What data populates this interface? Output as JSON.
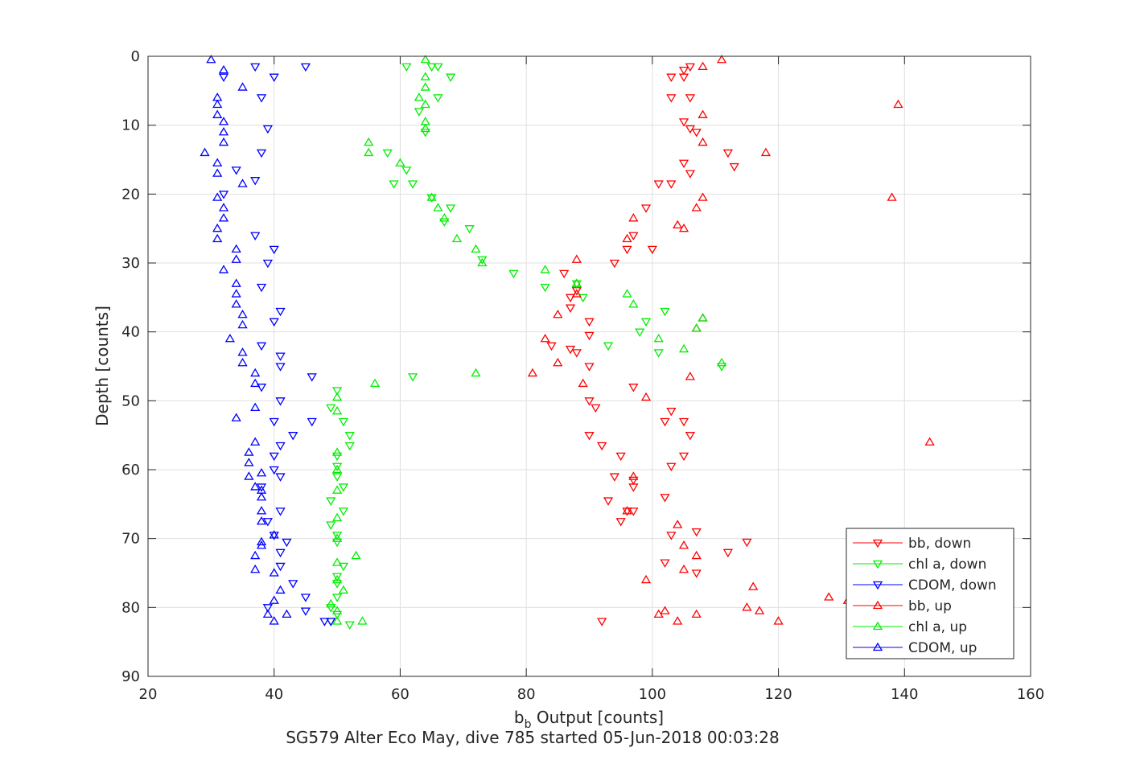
{
  "chart_data": {
    "type": "scatter",
    "xlabel": "b_b Output [counts]",
    "xlabel_main": "b",
    "xlabel_sub": "b",
    "xlabel_rest": " Output [counts]",
    "ylabel": "Depth [counts]",
    "caption": "SG579 Alter Eco May, dive 785 started 05-Jun-2018 00:03:28",
    "xlim": [
      20,
      160
    ],
    "ylim": [
      0,
      90
    ],
    "y_reversed": true,
    "xticks": [
      "20",
      "40",
      "60",
      "80",
      "100",
      "120",
      "140",
      "160"
    ],
    "yticks": [
      "0",
      "10",
      "20",
      "30",
      "40",
      "50",
      "60",
      "70",
      "80",
      "90"
    ],
    "grid": true,
    "legend_position": "lower-right",
    "series": [
      {
        "name": "bb, down",
        "color": "#ff0000",
        "marker": "triangle-down",
        "points": [
          [
            106,
            1.5
          ],
          [
            105,
            2
          ],
          [
            103,
            3
          ],
          [
            105,
            3
          ],
          [
            103,
            6
          ],
          [
            106,
            6
          ],
          [
            105,
            9.5
          ],
          [
            106,
            10.5
          ],
          [
            107,
            11
          ],
          [
            112,
            14
          ],
          [
            113,
            16
          ],
          [
            105,
            15.5
          ],
          [
            106,
            17
          ],
          [
            101,
            18.5
          ],
          [
            103,
            18.5
          ],
          [
            99,
            22
          ],
          [
            97,
            26
          ],
          [
            96,
            28
          ],
          [
            100,
            28
          ],
          [
            94,
            30
          ],
          [
            86,
            31.5
          ],
          [
            87,
            35
          ],
          [
            88,
            34
          ],
          [
            87,
            36.5
          ],
          [
            90,
            38.5
          ],
          [
            90,
            40.5
          ],
          [
            84,
            42
          ],
          [
            87,
            42.5
          ],
          [
            88,
            43
          ],
          [
            90,
            45
          ],
          [
            97,
            48
          ],
          [
            90,
            50
          ],
          [
            91,
            51
          ],
          [
            103,
            51.5
          ],
          [
            102,
            53
          ],
          [
            105,
            53
          ],
          [
            106,
            55
          ],
          [
            90,
            55
          ],
          [
            92,
            56.5
          ],
          [
            95,
            58
          ],
          [
            103,
            59.5
          ],
          [
            105,
            58
          ],
          [
            94,
            61
          ],
          [
            97,
            61.5
          ],
          [
            97,
            62.5
          ],
          [
            102,
            64
          ],
          [
            93,
            64.5
          ],
          [
            97,
            66
          ],
          [
            96,
            66
          ],
          [
            95,
            67.5
          ],
          [
            103,
            69.5
          ],
          [
            107,
            69
          ],
          [
            115,
            70.5
          ],
          [
            112,
            72
          ],
          [
            102,
            73.5
          ],
          [
            107,
            75
          ],
          [
            92,
            82
          ]
        ]
      },
      {
        "name": "chl a, down",
        "color": "#00ee00",
        "marker": "triangle-down",
        "points": [
          [
            61,
            1.5
          ],
          [
            66,
            1.5
          ],
          [
            65,
            1.5
          ],
          [
            68,
            3
          ],
          [
            66,
            6
          ],
          [
            63,
            8
          ],
          [
            64,
            11
          ],
          [
            58,
            14
          ],
          [
            61,
            16.5
          ],
          [
            62,
            18.5
          ],
          [
            59,
            18.5
          ],
          [
            65,
            20.5
          ],
          [
            68,
            22
          ],
          [
            67,
            24
          ],
          [
            71,
            25
          ],
          [
            73,
            29.5
          ],
          [
            78,
            31.5
          ],
          [
            83,
            33.5
          ],
          [
            88,
            33
          ],
          [
            89,
            35
          ],
          [
            102,
            37
          ],
          [
            99,
            38.5
          ],
          [
            98,
            40
          ],
          [
            101,
            43
          ],
          [
            93,
            42
          ],
          [
            111,
            45
          ],
          [
            62,
            46.5
          ],
          [
            50,
            48.5
          ],
          [
            49,
            51
          ],
          [
            51,
            53
          ],
          [
            52,
            55
          ],
          [
            52,
            56.5
          ],
          [
            50,
            58
          ],
          [
            50,
            59.5
          ],
          [
            50,
            61
          ],
          [
            51,
            62.5
          ],
          [
            49,
            64.5
          ],
          [
            51,
            66
          ],
          [
            49,
            68
          ],
          [
            50,
            69.5
          ],
          [
            50,
            70.5
          ],
          [
            51,
            74
          ],
          [
            50,
            75.5
          ],
          [
            50,
            76.5
          ],
          [
            50,
            78.5
          ],
          [
            49,
            80
          ],
          [
            50,
            81
          ],
          [
            49,
            82
          ],
          [
            52,
            82.5
          ]
        ]
      },
      {
        "name": "CDOM, down",
        "color": "#0000ff",
        "marker": "triangle-down",
        "points": [
          [
            37,
            1.5
          ],
          [
            45,
            1.5
          ],
          [
            40,
            3
          ],
          [
            32,
            3
          ],
          [
            38,
            6
          ],
          [
            39,
            10.5
          ],
          [
            38,
            14
          ],
          [
            34,
            16.5
          ],
          [
            37,
            18
          ],
          [
            32,
            20
          ],
          [
            37,
            26
          ],
          [
            40,
            28
          ],
          [
            39,
            30
          ],
          [
            38,
            33.5
          ],
          [
            41,
            37
          ],
          [
            40,
            38.5
          ],
          [
            38,
            42
          ],
          [
            41,
            43.5
          ],
          [
            41,
            45
          ],
          [
            46,
            46.5
          ],
          [
            38,
            48
          ],
          [
            41,
            50
          ],
          [
            40,
            53
          ],
          [
            46,
            53
          ],
          [
            43,
            55
          ],
          [
            41,
            56.5
          ],
          [
            40,
            58
          ],
          [
            40,
            60
          ],
          [
            41,
            61
          ],
          [
            38,
            62.5
          ],
          [
            41,
            66
          ],
          [
            39,
            67.5
          ],
          [
            40,
            69.5
          ],
          [
            42,
            70.5
          ],
          [
            41,
            72
          ],
          [
            41,
            74
          ],
          [
            43,
            76.5
          ],
          [
            45,
            78.5
          ],
          [
            39,
            80
          ],
          [
            45,
            80.5
          ],
          [
            48,
            82
          ],
          [
            49,
            82
          ]
        ]
      },
      {
        "name": "bb, up",
        "color": "#ff0000",
        "marker": "triangle-up",
        "points": [
          [
            111,
            0.5
          ],
          [
            108,
            1.5
          ],
          [
            139,
            7
          ],
          [
            108,
            8.5
          ],
          [
            108,
            12.5
          ],
          [
            118,
            14
          ],
          [
            138,
            20.5
          ],
          [
            108,
            20.5
          ],
          [
            107,
            22
          ],
          [
            104,
            24.5
          ],
          [
            105,
            25
          ],
          [
            97,
            23.5
          ],
          [
            96,
            26.5
          ],
          [
            88,
            29.5
          ],
          [
            88,
            33
          ],
          [
            88,
            34.5
          ],
          [
            85,
            37.5
          ],
          [
            107,
            39.5
          ],
          [
            108,
            38
          ],
          [
            83,
            41
          ],
          [
            85,
            44.5
          ],
          [
            81,
            46
          ],
          [
            106,
            46.5
          ],
          [
            89,
            47.5
          ],
          [
            99,
            49.5
          ],
          [
            144,
            56
          ],
          [
            97,
            61
          ],
          [
            96,
            66
          ],
          [
            104,
            68
          ],
          [
            105,
            71
          ],
          [
            107,
            72.5
          ],
          [
            105,
            74.5
          ],
          [
            99,
            76
          ],
          [
            116,
            77
          ],
          [
            128,
            78.5
          ],
          [
            131,
            79
          ],
          [
            115,
            80
          ],
          [
            117,
            80.5
          ],
          [
            102,
            80.5
          ],
          [
            101,
            81
          ],
          [
            120,
            82
          ],
          [
            104,
            82
          ],
          [
            107,
            81
          ]
        ]
      },
      {
        "name": "chl a, up",
        "color": "#00ee00",
        "marker": "triangle-up",
        "points": [
          [
            64,
            0.5
          ],
          [
            64,
            3
          ],
          [
            64,
            4.5
          ],
          [
            63,
            6
          ],
          [
            64,
            7
          ],
          [
            64,
            9.5
          ],
          [
            64,
            10.5
          ],
          [
            55,
            12.5
          ],
          [
            55,
            14
          ],
          [
            60,
            15.5
          ],
          [
            65,
            20.5
          ],
          [
            66,
            22
          ],
          [
            67,
            23.5
          ],
          [
            69,
            26.5
          ],
          [
            72,
            28
          ],
          [
            73,
            30
          ],
          [
            83,
            31
          ],
          [
            88,
            33
          ],
          [
            96,
            34.5
          ],
          [
            97,
            36
          ],
          [
            108,
            38
          ],
          [
            107,
            39.5
          ],
          [
            101,
            41
          ],
          [
            105,
            42.5
          ],
          [
            111,
            44.5
          ],
          [
            72,
            46
          ],
          [
            56,
            47.5
          ],
          [
            50,
            49.5
          ],
          [
            50,
            51.5
          ],
          [
            50,
            57.5
          ],
          [
            50,
            60
          ],
          [
            50,
            63
          ],
          [
            50,
            67
          ],
          [
            50,
            70
          ],
          [
            53,
            72.5
          ],
          [
            50,
            73.5
          ],
          [
            50,
            76
          ],
          [
            51,
            77.5
          ],
          [
            49,
            79.5
          ],
          [
            50,
            80.5
          ],
          [
            54,
            82
          ],
          [
            50,
            82
          ]
        ]
      },
      {
        "name": "CDOM, up",
        "color": "#0000ff",
        "marker": "triangle-up",
        "points": [
          [
            30,
            0.5
          ],
          [
            32,
            2
          ],
          [
            35,
            4.5
          ],
          [
            31,
            6
          ],
          [
            31,
            7
          ],
          [
            31,
            8.5
          ],
          [
            32,
            9.5
          ],
          [
            32,
            11
          ],
          [
            32,
            12.5
          ],
          [
            29,
            14
          ],
          [
            31,
            15.5
          ],
          [
            31,
            17
          ],
          [
            35,
            18.5
          ],
          [
            31,
            20.5
          ],
          [
            32,
            22
          ],
          [
            32,
            23.5
          ],
          [
            31,
            25
          ],
          [
            31,
            26.5
          ],
          [
            34,
            28
          ],
          [
            34,
            29.5
          ],
          [
            32,
            31
          ],
          [
            34,
            33
          ],
          [
            34,
            34.5
          ],
          [
            34,
            36
          ],
          [
            35,
            37.5
          ],
          [
            35,
            39
          ],
          [
            33,
            41
          ],
          [
            35,
            43
          ],
          [
            35,
            44.5
          ],
          [
            37,
            46
          ],
          [
            37,
            47.5
          ],
          [
            37,
            51
          ],
          [
            34,
            52.5
          ],
          [
            37,
            56
          ],
          [
            36,
            57.5
          ],
          [
            36,
            59
          ],
          [
            38,
            60.5
          ],
          [
            36,
            61
          ],
          [
            37,
            62.5
          ],
          [
            38,
            63
          ],
          [
            38,
            64
          ],
          [
            38,
            66
          ],
          [
            38,
            67.5
          ],
          [
            40,
            69.5
          ],
          [
            38,
            70.5
          ],
          [
            37,
            72.5
          ],
          [
            37,
            74.5
          ],
          [
            38,
            71
          ],
          [
            40,
            75
          ],
          [
            41,
            77.5
          ],
          [
            40,
            79
          ],
          [
            42,
            81
          ],
          [
            40,
            82
          ],
          [
            39,
            81
          ]
        ]
      }
    ]
  }
}
